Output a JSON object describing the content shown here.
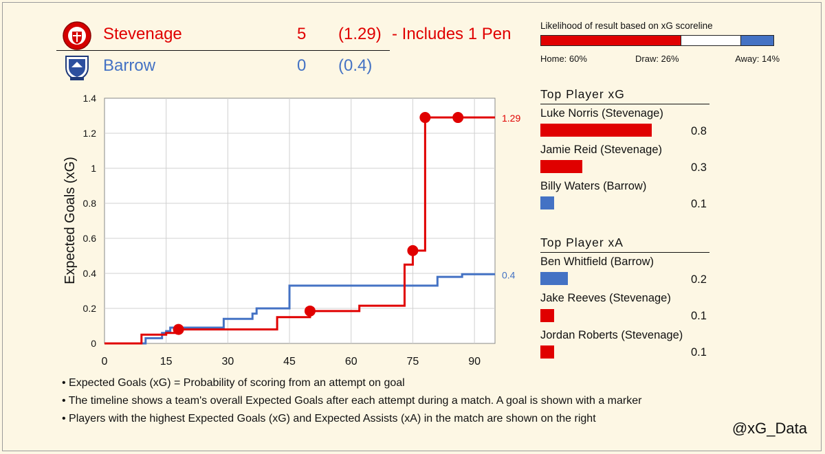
{
  "home": {
    "name": "Stevenage",
    "goals": "5",
    "xg": "(1.29)",
    "note": "- Includes 1 Pen",
    "color": "#e00000"
  },
  "away": {
    "name": "Barrow",
    "goals": "0",
    "xg": "(0.4)",
    "color": "#4472c4"
  },
  "likelihood": {
    "title": "Likelihood of result based on xG scoreline",
    "home_label": "Home: 60%",
    "draw_label": "Draw: 26%",
    "away_label": "Away: 14%",
    "home_pct": 60,
    "draw_pct": 26,
    "away_pct": 14
  },
  "top_xg": {
    "title": "Top Player xG",
    "players": [
      {
        "name": "Luke Norris (Stevenage)",
        "value": 0.8,
        "label": "0.8",
        "color": "#e00000"
      },
      {
        "name": "Jamie Reid (Stevenage)",
        "value": 0.3,
        "label": "0.3",
        "color": "#e00000"
      },
      {
        "name": "Billy Waters (Barrow)",
        "value": 0.1,
        "label": "0.1",
        "color": "#4472c4"
      }
    ]
  },
  "top_xa": {
    "title": "Top Player xA",
    "players": [
      {
        "name": "Ben Whitfield (Barrow)",
        "value": 0.2,
        "label": "0.2",
        "color": "#4472c4"
      },
      {
        "name": "Jake Reeves (Stevenage)",
        "value": 0.1,
        "label": "0.1",
        "color": "#e00000"
      },
      {
        "name": "Jordan Roberts (Stevenage)",
        "value": 0.1,
        "label": "0.1",
        "color": "#e00000"
      }
    ]
  },
  "notes": [
    "• Expected Goals (xG) = Probability of scoring from an attempt on goal",
    "• The timeline shows a team's overall Expected Goals after each attempt during a match. A goal is shown with a marker",
    "• Players with the highest Expected Goals (xG) and Expected Assists (xA) in the match are shown on the right"
  ],
  "handle": "@xG_Data",
  "chart_data": {
    "type": "line",
    "title": "",
    "xlabel": "",
    "ylabel": "Expected Goals (xG)",
    "xlim": [
      0,
      95
    ],
    "ylim": [
      0,
      1.4
    ],
    "x_ticks": [
      0,
      15,
      30,
      45,
      60,
      75,
      90
    ],
    "x_tick_labels": [
      "0",
      "15",
      "30",
      "45",
      "60",
      "75",
      "90"
    ],
    "y_ticks": [
      0,
      0.2,
      0.4,
      0.6,
      0.8,
      1.0,
      1.2,
      1.4
    ],
    "y_tick_labels": [
      "0",
      "0.2",
      "0.4",
      "0.6",
      "0.8",
      "1",
      "1.2",
      "1.4"
    ],
    "grid": true,
    "step": true,
    "series": [
      {
        "name": "Stevenage",
        "color": "#e00000",
        "end_label": "1.29",
        "steps": [
          [
            0,
            0
          ],
          [
            9,
            0.05
          ],
          [
            15,
            0.06
          ],
          [
            18,
            0.08
          ],
          [
            42,
            0.15
          ],
          [
            50,
            0.185
          ],
          [
            62,
            0.215
          ],
          [
            73,
            0.45
          ],
          [
            75,
            0.53
          ],
          [
            78,
            1.29
          ],
          [
            95,
            1.29
          ]
        ],
        "goals": [
          [
            18,
            0.08
          ],
          [
            50,
            0.185
          ],
          [
            75,
            0.53
          ],
          [
            78,
            1.29
          ],
          [
            86,
            1.29
          ]
        ]
      },
      {
        "name": "Barrow",
        "color": "#4472c4",
        "end_label": "0.4",
        "steps": [
          [
            0,
            0
          ],
          [
            10,
            0.03
          ],
          [
            14,
            0.06
          ],
          [
            15,
            0.07
          ],
          [
            16,
            0.09
          ],
          [
            29,
            0.14
          ],
          [
            36,
            0.17
          ],
          [
            37,
            0.2
          ],
          [
            45,
            0.33
          ],
          [
            81,
            0.38
          ],
          [
            87,
            0.395
          ],
          [
            95,
            0.395
          ]
        ],
        "goals": []
      }
    ]
  }
}
